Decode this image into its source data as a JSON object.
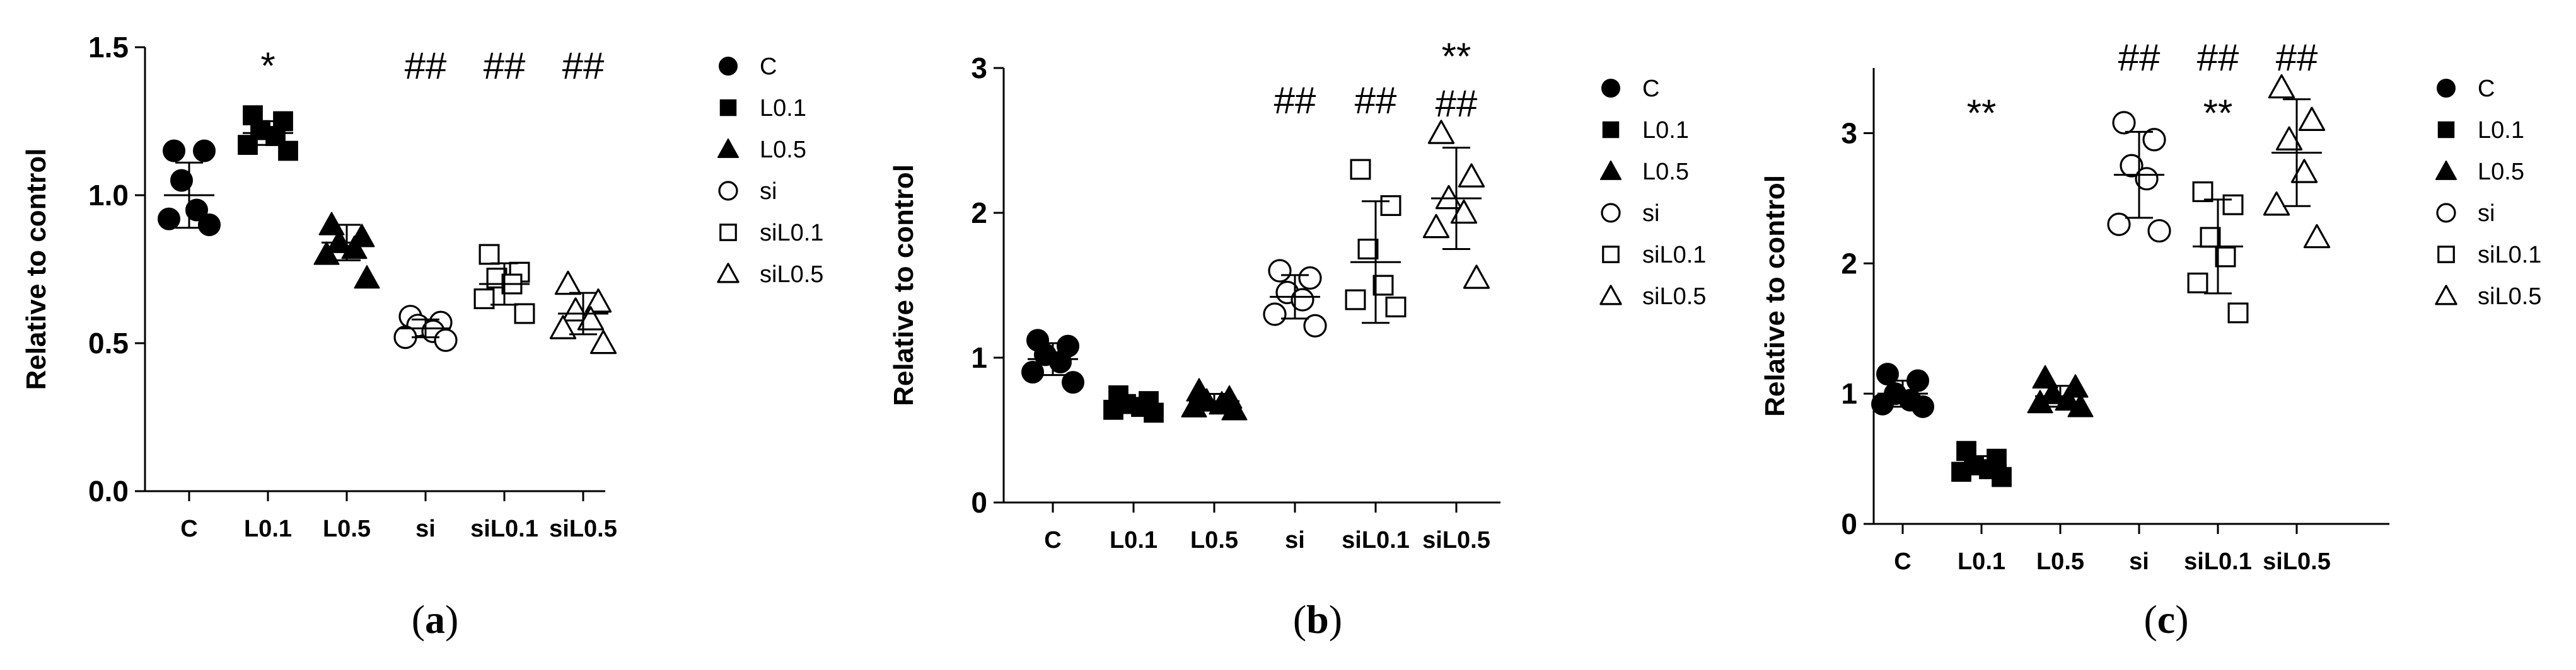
{
  "chart_data": [
    {
      "type": "scatter",
      "panel_label_open": "(",
      "panel_label_letter": "a",
      "panel_label_close": ")",
      "ylabel": "Relative to control",
      "xlabel": "",
      "ylim": [
        0,
        1.5
      ],
      "yticks": [
        "0.0",
        "0.5",
        "1.0",
        "1.5"
      ],
      "categories": [
        "C",
        "L0.1",
        "L0.5",
        "si",
        "siL0.1",
        "siL0.5"
      ],
      "markers": [
        "filled-circle",
        "filled-square",
        "filled-triangle",
        "open-circle",
        "open-square",
        "open-triangle"
      ],
      "points": [
        [
          1.15,
          1.15,
          1.05,
          0.95,
          0.92,
          0.9
        ],
        [
          1.27,
          1.25,
          1.22,
          1.2,
          1.17,
          1.15
        ],
        [
          0.9,
          0.86,
          0.84,
          0.82,
          0.8,
          0.72
        ],
        [
          0.59,
          0.57,
          0.56,
          0.54,
          0.52,
          0.51
        ],
        [
          0.8,
          0.74,
          0.72,
          0.7,
          0.65,
          0.6
        ],
        [
          0.7,
          0.64,
          0.61,
          0.58,
          0.55,
          0.5
        ]
      ],
      "mean": [
        1.0,
        1.21,
        0.84,
        0.55,
        0.7,
        0.6
      ],
      "sd": [
        0.11,
        0.04,
        0.06,
        0.03,
        0.07,
        0.07
      ],
      "annotations": [
        {
          "category": "L0.1",
          "lines": [
            "*"
          ]
        },
        {
          "category": "si",
          "lines": [
            "##"
          ]
        },
        {
          "category": "siL0.1",
          "lines": [
            "##"
          ]
        },
        {
          "category": "siL0.5",
          "lines": [
            "##"
          ]
        }
      ],
      "legend": [
        "C",
        "L0.1",
        "L0.5",
        "si",
        "siL0.1",
        "siL0.5"
      ],
      "legend_position": "right",
      "grid": false,
      "color": "#000000"
    },
    {
      "type": "scatter",
      "panel_label_open": "(",
      "panel_label_letter": "b",
      "panel_label_close": ")",
      "ylabel": "Relative to control",
      "xlabel": "",
      "ylim": [
        0,
        3
      ],
      "yticks": [
        "0",
        "1",
        "2",
        "3"
      ],
      "categories": [
        "C",
        "L0.1",
        "L0.5",
        "si",
        "siL0.1",
        "siL0.5"
      ],
      "markers": [
        "filled-circle",
        "filled-square",
        "filled-triangle",
        "open-circle",
        "open-square",
        "open-triangle"
      ],
      "points": [
        [
          1.12,
          1.08,
          1.02,
          0.97,
          0.9,
          0.83
        ],
        [
          0.74,
          0.7,
          0.68,
          0.66,
          0.64,
          0.62
        ],
        [
          0.77,
          0.72,
          0.7,
          0.68,
          0.66,
          0.64
        ],
        [
          1.6,
          1.55,
          1.45,
          1.4,
          1.3,
          1.22
        ],
        [
          2.3,
          2.05,
          1.75,
          1.5,
          1.4,
          1.35
        ],
        [
          2.55,
          2.25,
          2.1,
          2.0,
          1.9,
          1.55
        ]
      ],
      "mean": [
        0.99,
        0.67,
        0.7,
        1.42,
        1.66,
        2.1
      ],
      "sd": [
        0.11,
        0.04,
        0.05,
        0.15,
        0.42,
        0.35
      ],
      "annotations": [
        {
          "category": "si",
          "lines": [
            "##"
          ]
        },
        {
          "category": "siL0.1",
          "lines": [
            "##"
          ]
        },
        {
          "category": "siL0.5",
          "lines": [
            "**",
            "##"
          ]
        }
      ],
      "legend": [
        "C",
        "L0.1",
        "L0.5",
        "si",
        "siL0.1",
        "siL0.5"
      ],
      "legend_position": "right",
      "grid": false,
      "color": "#000000"
    },
    {
      "type": "scatter",
      "panel_label_open": "(",
      "panel_label_letter": "c",
      "panel_label_close": ")",
      "ylabel": "Relative to control",
      "xlabel": "",
      "ylim": [
        0,
        3.5
      ],
      "yticks": [
        "0",
        "1",
        "2",
        "3"
      ],
      "categories": [
        "C",
        "L0.1",
        "L0.5",
        "si",
        "siL0.1",
        "siL0.5"
      ],
      "markers": [
        "filled-circle",
        "filled-square",
        "filled-triangle",
        "open-circle",
        "open-square",
        "open-triangle"
      ],
      "points": [
        [
          1.15,
          1.1,
          1.0,
          0.95,
          0.92,
          0.9
        ],
        [
          0.56,
          0.5,
          0.45,
          0.42,
          0.4,
          0.36
        ],
        [
          1.12,
          1.05,
          1.0,
          0.95,
          0.93,
          0.9
        ],
        [
          3.08,
          2.95,
          2.75,
          2.65,
          2.3,
          2.25
        ],
        [
          2.55,
          2.45,
          2.2,
          2.05,
          1.85,
          1.62
        ],
        [
          3.35,
          3.1,
          2.95,
          2.7,
          2.45,
          2.2
        ]
      ],
      "mean": [
        1.0,
        0.45,
        0.98,
        2.68,
        2.13,
        2.85
      ],
      "sd": [
        0.1,
        0.07,
        0.08,
        0.33,
        0.36,
        0.41
      ],
      "annotations": [
        {
          "category": "L0.1",
          "lines": [
            "**"
          ]
        },
        {
          "category": "si",
          "lines": [
            "##"
          ]
        },
        {
          "category": "siL0.1",
          "lines": [
            "##",
            "**"
          ]
        },
        {
          "category": "siL0.5",
          "lines": [
            "##"
          ]
        }
      ],
      "legend": [
        "C",
        "L0.1",
        "L0.5",
        "si",
        "siL0.1",
        "siL0.5"
      ],
      "legend_position": "right",
      "grid": false,
      "color": "#000000"
    }
  ]
}
